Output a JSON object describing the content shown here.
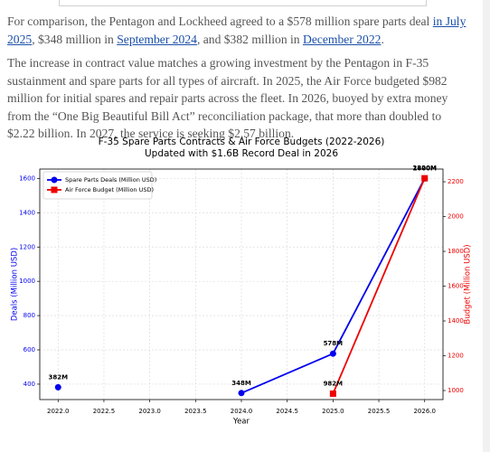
{
  "article": {
    "p1": [
      "For comparison, the Pentagon and Lockheed agreed to a $578 million spare parts deal ",
      "in July 2025",
      ", $348 million in ",
      "September 2024",
      ", and $382 million in ",
      "December 2022",
      "."
    ],
    "p2": "The increase in contract value matches a growing investment by the Pentagon in F-35 sustainment and spare parts for all types of aircraft. In 2025, the Air Force budgeted $982 million for initial spares and repair parts across the fleet. In 2026, buoyed by extra money from the “One Big Beautiful Bill Act” reconciliation package, that more than doubled to $2.22 billion. In 2027, the service is seeking $2.57 billion."
  },
  "chart_data": {
    "type": "line",
    "title": "F-35 Spare Parts Contracts & Air Force Budgets (2022-2026)",
    "subtitle": "Updated with $1.6B Record Deal in 2026",
    "x_label": "Year",
    "y_label": "Deals (Million USD)",
    "y2_label": "Budget (Million USD)",
    "x": [
      2022,
      2023,
      2024,
      2025,
      2026
    ],
    "series": [
      {
        "name": "Spare Parts Deals (Million USD)",
        "color": "#0000ee",
        "marker": "circle",
        "values": [
          382,
          null,
          348,
          578,
          1600
        ],
        "value_labels": [
          "382M",
          null,
          "348M",
          "578M",
          "1600M"
        ]
      },
      {
        "name": "Air Force Budget (Million USD)",
        "color": "#ee0000",
        "marker": "square",
        "axis": "y2",
        "values": [
          null,
          null,
          null,
          982,
          2220
        ],
        "value_labels": [
          null,
          null,
          null,
          "982M",
          "2220M"
        ]
      }
    ],
    "xlim": [
      2021.8,
      2026.2
    ],
    "xticks": [
      {
        "value": 2022,
        "label": "2022.0"
      },
      {
        "value": 2022.5,
        "label": "2022.5"
      },
      {
        "value": 2023,
        "label": "2023.0"
      },
      {
        "value": 2023.5,
        "label": "2023.5"
      },
      {
        "value": 2024,
        "label": "2024.0"
      },
      {
        "value": 2024.5,
        "label": "2024.5"
      },
      {
        "value": 2025,
        "label": "2025.0"
      },
      {
        "value": 2025.5,
        "label": "2025.5"
      },
      {
        "value": 2026,
        "label": "2026.0"
      }
    ],
    "ylim": [
      310,
      1655
    ],
    "yticks": [
      400,
      600,
      800,
      1000,
      1200,
      1400,
      1600
    ],
    "y2lim": [
      948,
      2273
    ],
    "y2ticks": [
      1000,
      1200,
      1400,
      1600,
      1800,
      2000,
      2200
    ],
    "grid": true,
    "legend": "upper left"
  }
}
